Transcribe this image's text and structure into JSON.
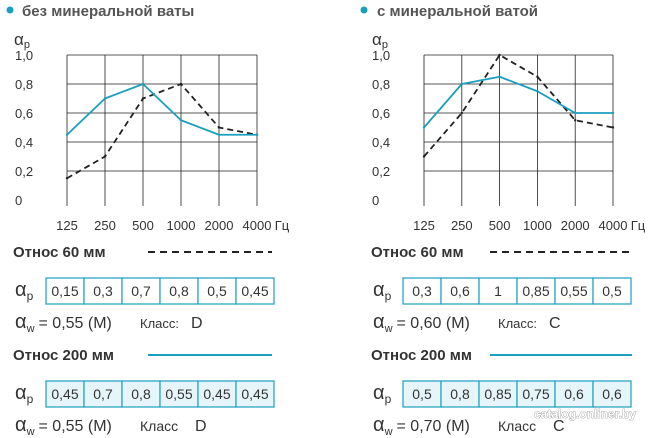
{
  "colors": {
    "accent": "#1a9fbf",
    "text": "#333333",
    "grid": "#222222",
    "cell_fill": "#e6f5fa",
    "watermark": "#ffffff"
  },
  "panels": [
    {
      "bullet_icon": "bullet-dot-icon",
      "title": "без минеральной ваты",
      "chart_data": {
        "type": "line",
        "title": "без минеральной ваты",
        "ylabel": "αp",
        "xlabel": "Гц",
        "categories": [
          "125",
          "250",
          "500",
          "1000",
          "2000",
          "4000"
        ],
        "y_ticks": [
          "0",
          "0,2",
          "0,4",
          "0,6",
          "0,8",
          "1,0"
        ],
        "ylim": [
          0,
          1.0
        ],
        "grid": true,
        "series": [
          {
            "name": "Относ 60 мм",
            "style": "dashed",
            "color": "#222222",
            "values": [
              0.15,
              0.3,
              0.7,
              0.8,
              0.5,
              0.45
            ]
          },
          {
            "name": "Относ 200 мм",
            "style": "solid",
            "color": "#1a9fbf",
            "values": [
              0.45,
              0.7,
              0.8,
              0.55,
              0.45,
              0.45
            ]
          }
        ]
      },
      "tables": [
        {
          "label": "Относ 60 мм",
          "symbol": "α",
          "symbol_sub": "p",
          "values": [
            "0,15",
            "0,3",
            "0,7",
            "0,8",
            "0,5",
            "0,45"
          ],
          "filled": false,
          "aw_symbol": "α",
          "aw_sub": "w",
          "aw_text": "= 0,55 (M)",
          "class_label": "Класс:",
          "class_value": "D"
        },
        {
          "label": "Относ 200 мм",
          "symbol": "α",
          "symbol_sub": "p",
          "values": [
            "0,45",
            "0,7",
            "0,8",
            "0,55",
            "0,45",
            "0,45"
          ],
          "filled": true,
          "aw_symbol": "α",
          "aw_sub": "w",
          "aw_text": "= 0,55 (M)",
          "class_label": "Класс",
          "class_value": "D"
        }
      ]
    },
    {
      "bullet_icon": "bullet-dot-icon",
      "title": "с минеральной ватой",
      "chart_data": {
        "type": "line",
        "title": "с минеральной ватой",
        "ylabel": "αp",
        "xlabel": "Гц",
        "categories": [
          "125",
          "250",
          "500",
          "1000",
          "2000",
          "4000"
        ],
        "y_ticks": [
          "0",
          "0,2",
          "0,4",
          "0,6",
          "0,8",
          "1,0"
        ],
        "ylim": [
          0,
          1.0
        ],
        "grid": true,
        "series": [
          {
            "name": "Относ 60 мм",
            "style": "dashed",
            "color": "#222222",
            "values": [
              0.3,
              0.6,
              1.0,
              0.85,
              0.55,
              0.5
            ]
          },
          {
            "name": "Относ 200 мм",
            "style": "solid",
            "color": "#1a9fbf",
            "values": [
              0.5,
              0.8,
              0.85,
              0.75,
              0.6,
              0.6
            ]
          }
        ]
      },
      "tables": [
        {
          "label": "Относ 60 мм",
          "symbol": "α",
          "symbol_sub": "p",
          "values": [
            "0,3",
            "0,6",
            "1",
            "0,85",
            "0,55",
            "0,5"
          ],
          "filled": false,
          "aw_symbol": "α",
          "aw_sub": "w",
          "aw_text": "= 0,60 (M)",
          "class_label": "Класс:",
          "class_value": "C"
        },
        {
          "label": "Относ 200 мм",
          "symbol": "α",
          "symbol_sub": "p",
          "values": [
            "0,5",
            "0,8",
            "0,85",
            "0,75",
            "0,6",
            "0,6"
          ],
          "filled": true,
          "aw_symbol": "α",
          "aw_sub": "w",
          "aw_text": "= 0,70 (M)",
          "class_label": "Класс",
          "class_value": "C"
        }
      ]
    }
  ],
  "watermark": "catalog.onliner.by"
}
